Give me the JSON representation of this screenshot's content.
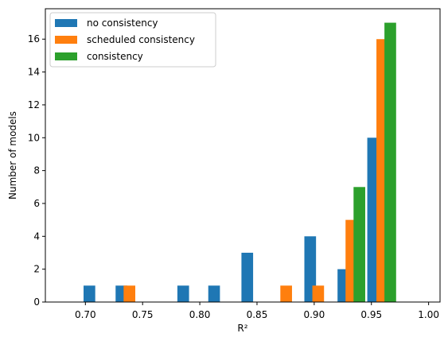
{
  "chart_data": {
    "type": "bar",
    "xlabel": "R²",
    "ylabel": "Number of models",
    "xlim": [
      0.665,
      1.01
    ],
    "ylim": [
      0,
      17.85
    ],
    "xticks": [
      0.7,
      0.75,
      0.8,
      0.85,
      0.9,
      0.95,
      1.0
    ],
    "xtick_labels": [
      "0.70",
      "0.75",
      "0.80",
      "0.85",
      "0.90",
      "0.95",
      "1.00"
    ],
    "yticks": [
      0,
      2,
      4,
      6,
      8,
      10,
      12,
      14,
      16
    ],
    "ytick_labels": [
      "0",
      "2",
      "4",
      "6",
      "8",
      "10",
      "12",
      "14",
      "16"
    ],
    "bin_width": 0.0102,
    "legend_position": "upper-left",
    "grid": false,
    "series": [
      {
        "name": "no consistency",
        "color": "#1f77b4",
        "x": [
          0.7035,
          0.7315,
          0.7855,
          0.8125,
          0.8415,
          0.8965,
          0.9255,
          0.9515
        ],
        "values": [
          1,
          1,
          1,
          1,
          3,
          4,
          2,
          10
        ]
      },
      {
        "name": "scheduled consistency",
        "color": "#ff7f0e",
        "x": [
          0.7385,
          0.8755,
          0.9035,
          0.9325,
          0.9595
        ],
        "values": [
          1,
          1,
          1,
          5,
          16
        ]
      },
      {
        "name": "consistency",
        "color": "#2ca02c",
        "x": [
          0.9395,
          0.9665
        ],
        "values": [
          7,
          17
        ]
      }
    ]
  }
}
